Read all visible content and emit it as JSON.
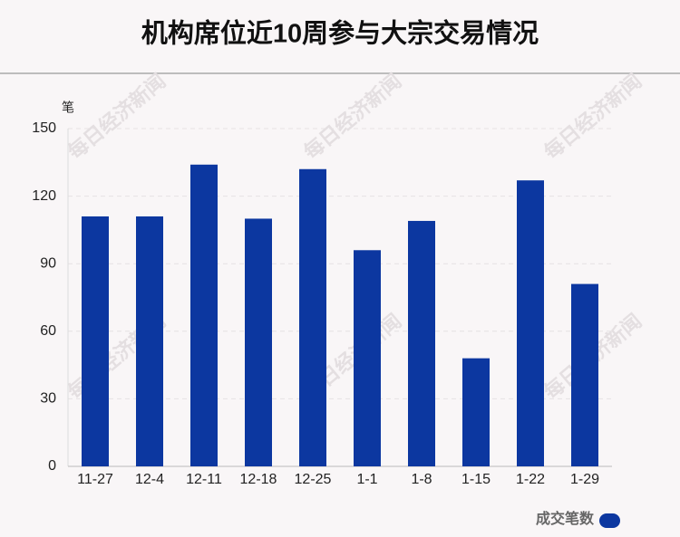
{
  "chart_data": {
    "type": "bar",
    "title": "机构席位近10周参与大宗交易情况",
    "y_unit": "笔",
    "watermark": "每日经济新闻",
    "categories": [
      "11-27",
      "12-4",
      "12-11",
      "12-18",
      "12-25",
      "1-1",
      "1-8",
      "1-15",
      "1-22",
      "1-29"
    ],
    "series": [
      {
        "name": "成交笔数",
        "color": "#0c37a0",
        "values": [
          111,
          111,
          134,
          110,
          132,
          96,
          109,
          48,
          127,
          81
        ]
      }
    ],
    "ylim": [
      0,
      150
    ],
    "yticks": [
      0,
      30,
      60,
      90,
      120,
      150
    ],
    "grid": true,
    "legend": "bottom-right"
  }
}
